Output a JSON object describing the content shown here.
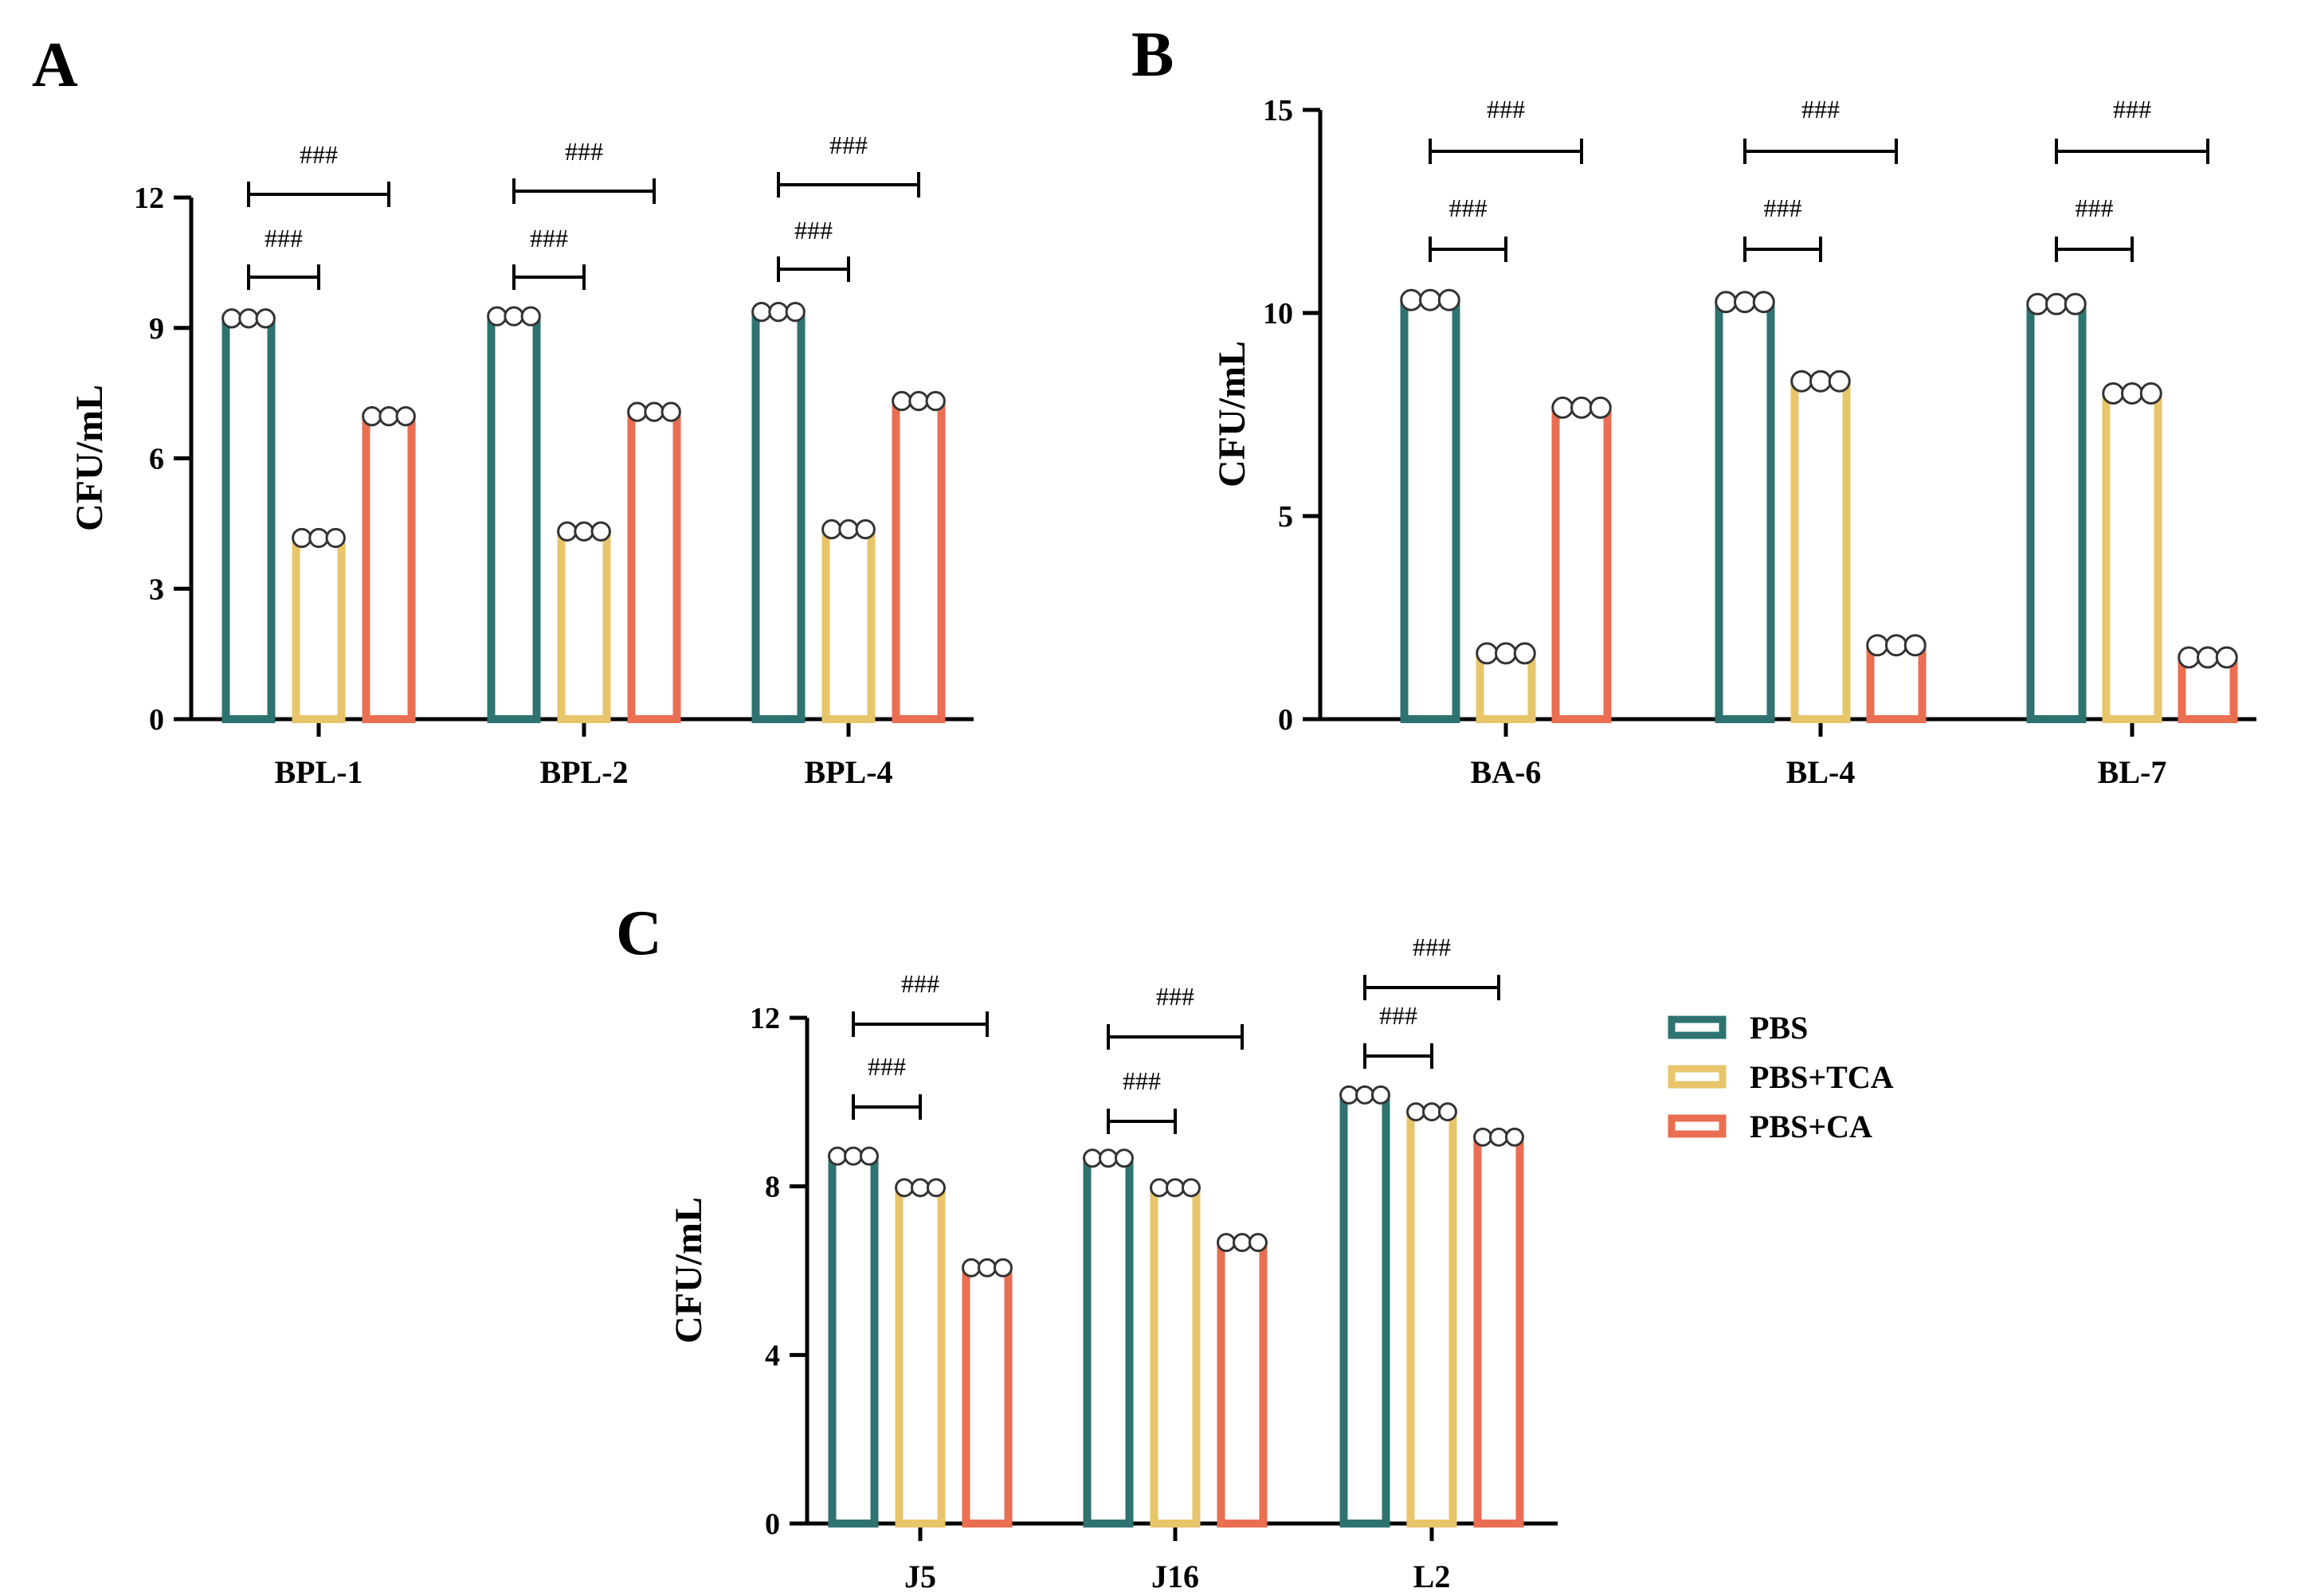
{
  "chart_data": [
    {
      "type": "bar",
      "panel": "A",
      "title": "",
      "xlabel": "",
      "ylabel": "CFU/mL",
      "ylim": [
        0,
        12
      ],
      "yticks": [
        0,
        3,
        6,
        9,
        12
      ],
      "ytick_labels": [
        "0",
        "3",
        "6",
        "9",
        "12"
      ],
      "categories": [
        "BPL-1",
        "BPL-2",
        "BPL-4"
      ],
      "series": [
        {
          "name": "PBS",
          "values": [
            9.2,
            9.25,
            9.35
          ]
        },
        {
          "name": "PBS+TCA",
          "values": [
            4.15,
            4.3,
            4.35
          ]
        },
        {
          "name": "PBS+CA",
          "values": [
            6.95,
            7.05,
            7.3
          ]
        }
      ],
      "significance": [
        {
          "category": "BPL-1",
          "pair": [
            "PBS",
            "PBS+TCA"
          ],
          "label": "###"
        },
        {
          "category": "BPL-1",
          "pair": [
            "PBS",
            "PBS+CA"
          ],
          "label": "###"
        },
        {
          "category": "BPL-2",
          "pair": [
            "PBS",
            "PBS+TCA"
          ],
          "label": "###"
        },
        {
          "category": "BPL-2",
          "pair": [
            "PBS",
            "PBS+CA"
          ],
          "label": "###"
        },
        {
          "category": "BPL-4",
          "pair": [
            "PBS",
            "PBS+TCA"
          ],
          "label": "###"
        },
        {
          "category": "BPL-4",
          "pair": [
            "PBS",
            "PBS+CA"
          ],
          "label": "###"
        }
      ]
    },
    {
      "type": "bar",
      "panel": "B",
      "title": "",
      "xlabel": "",
      "ylabel": "CFU/mL",
      "ylim": [
        0,
        15
      ],
      "yticks": [
        0,
        5,
        10,
        15
      ],
      "ytick_labels": [
        "0",
        "5",
        "10",
        "15"
      ],
      "categories": [
        "BA-6",
        "BL-4",
        "BL-7"
      ],
      "series": [
        {
          "name": "PBS",
          "values": [
            10.3,
            10.25,
            10.2
          ]
        },
        {
          "name": "PBS+TCA",
          "values": [
            1.6,
            8.3,
            8.0
          ]
        },
        {
          "name": "PBS+CA",
          "values": [
            7.65,
            1.8,
            1.5
          ]
        }
      ],
      "significance": [
        {
          "category": "BA-6",
          "pair": [
            "PBS",
            "PBS+TCA"
          ],
          "label": "###"
        },
        {
          "category": "BA-6",
          "pair": [
            "PBS",
            "PBS+CA"
          ],
          "label": "###"
        },
        {
          "category": "BL-4",
          "pair": [
            "PBS",
            "PBS+TCA"
          ],
          "label": "###"
        },
        {
          "category": "BL-4",
          "pair": [
            "PBS",
            "PBS+CA"
          ],
          "label": "###"
        },
        {
          "category": "BL-7",
          "pair": [
            "PBS",
            "PBS+TCA"
          ],
          "label": "###"
        },
        {
          "category": "BL-7",
          "pair": [
            "PBS",
            "PBS+CA"
          ],
          "label": "###"
        }
      ]
    },
    {
      "type": "bar",
      "panel": "C",
      "title": "",
      "xlabel": "",
      "ylabel": "CFU/mL",
      "ylim": [
        0,
        12
      ],
      "yticks": [
        0,
        4,
        8,
        12
      ],
      "ytick_labels": [
        "0",
        "4",
        "8",
        "12"
      ],
      "categories": [
        "J5",
        "J16",
        "L2"
      ],
      "series": [
        {
          "name": "PBS",
          "values": [
            8.7,
            8.65,
            10.15
          ]
        },
        {
          "name": "PBS+TCA",
          "values": [
            7.95,
            7.95,
            9.75
          ]
        },
        {
          "name": "PBS+CA",
          "values": [
            6.05,
            6.65,
            9.15
          ]
        }
      ],
      "significance": [
        {
          "category": "J5",
          "pair": [
            "PBS",
            "PBS+TCA"
          ],
          "label": "###"
        },
        {
          "category": "J5",
          "pair": [
            "PBS",
            "PBS+CA"
          ],
          "label": "###"
        },
        {
          "category": "J16",
          "pair": [
            "PBS",
            "PBS+TCA"
          ],
          "label": "###"
        },
        {
          "category": "J16",
          "pair": [
            "PBS",
            "PBS+CA"
          ],
          "label": "###"
        },
        {
          "category": "L2",
          "pair": [
            "PBS",
            "PBS+TCA"
          ],
          "label": "###"
        },
        {
          "category": "L2",
          "pair": [
            "PBS",
            "PBS+CA"
          ],
          "label": "###"
        }
      ]
    }
  ],
  "legend": {
    "placement": "right of panel C",
    "items": [
      {
        "label": "PBS",
        "color": "#2e7370"
      },
      {
        "label": "PBS+TCA",
        "color": "#e8c56a"
      },
      {
        "label": "PBS+CA",
        "color": "#ea6e52"
      }
    ]
  },
  "colors": {
    "PBS": "#2e7370",
    "PBS+TCA": "#e8c56a",
    "PBS+CA": "#ea6e52"
  }
}
